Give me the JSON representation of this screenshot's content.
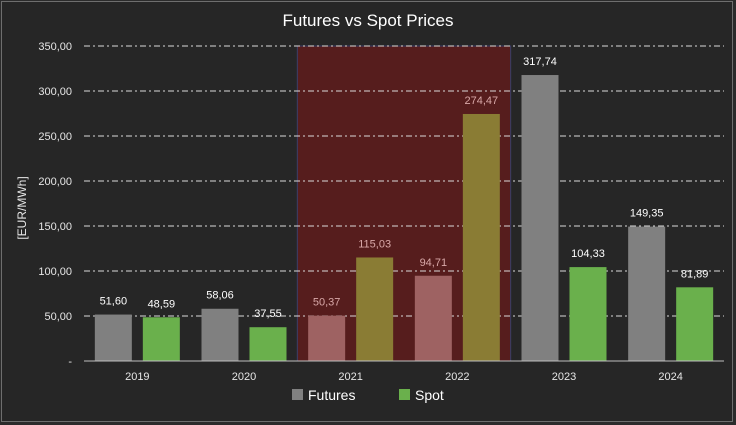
{
  "chart_data": {
    "type": "bar",
    "title": "Futures vs Spot Prices",
    "xlabel": "",
    "ylabel": "[EUR/MWh]",
    "categories": [
      "2019",
      "2020",
      "2021",
      "2022",
      "2023",
      "2024"
    ],
    "ylim": [
      0,
      350
    ],
    "yticks": [
      0,
      50,
      100,
      150,
      200,
      250,
      300,
      350
    ],
    "ytick_labels": [
      "-",
      "50,00",
      "100,00",
      "150,00",
      "200,00",
      "250,00",
      "300,00",
      "350,00"
    ],
    "series": [
      {
        "name": "Futures",
        "values": [
          51.6,
          58.06,
          50.37,
          94.71,
          317.74,
          149.35
        ],
        "labels": [
          "51,60",
          "58,06",
          "50,37",
          "94,71",
          "317,74",
          "149,35"
        ],
        "color": "#808080",
        "highlight_color": "#9e6262"
      },
      {
        "name": "Spot",
        "values": [
          48.59,
          37.55,
          115.03,
          274.47,
          104.33,
          81.89
        ],
        "labels": [
          "48,59",
          "37,55",
          "115,03",
          "274,47",
          "104,33",
          "81,89"
        ],
        "color": "#6ab04c",
        "highlight_color": "#8a7c34"
      }
    ],
    "highlight": {
      "categories": [
        "2021",
        "2022"
      ],
      "color": "#561d1d"
    },
    "grid": true,
    "legend_position": "bottom"
  }
}
